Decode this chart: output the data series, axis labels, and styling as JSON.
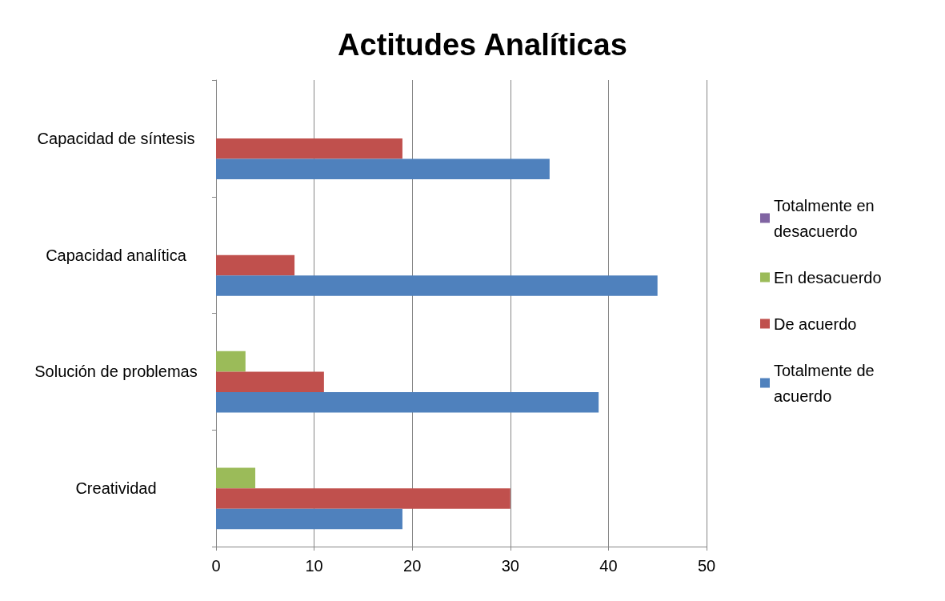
{
  "chart_data": {
    "type": "bar",
    "title": "Actitudes Analíticas",
    "orientation": "horizontal",
    "categories": [
      "Capacidad de síntesis",
      "Capacidad analítica",
      "Solución de problemas",
      "Creatividad"
    ],
    "series": [
      {
        "name": "Totalmente en desacuerdo",
        "color": "#8064a2",
        "values": [
          0,
          0,
          0,
          0
        ]
      },
      {
        "name": "En desacuerdo",
        "color": "#9bbb59",
        "values": [
          0,
          0,
          3,
          4
        ]
      },
      {
        "name": "De acuerdo",
        "color": "#c0504d",
        "values": [
          19,
          8,
          11,
          30
        ]
      },
      {
        "name": "Totalmente de acuerdo",
        "color": "#4f81bd",
        "values": [
          34,
          45,
          39,
          19
        ]
      }
    ],
    "xlim": [
      0,
      50
    ],
    "xticks": [
      0,
      10,
      20,
      30,
      40,
      50
    ],
    "grid": "x",
    "legend": "right"
  }
}
